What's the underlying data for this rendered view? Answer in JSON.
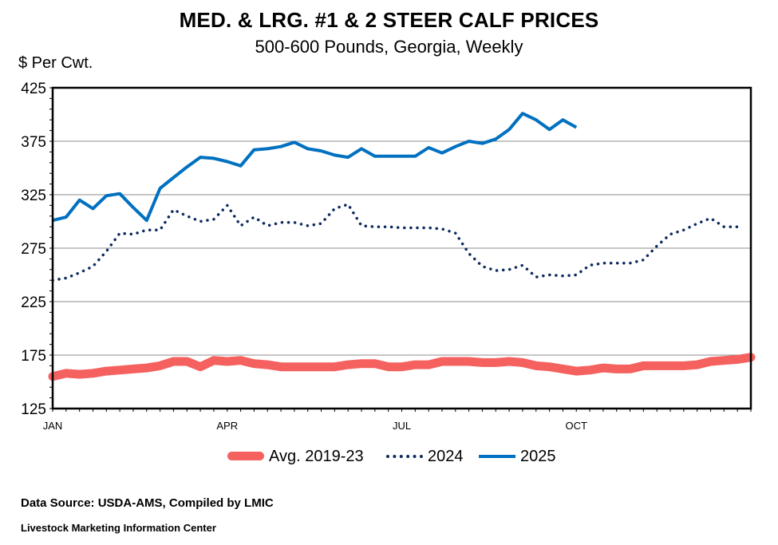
{
  "chart_data": {
    "type": "line",
    "title": "MED. & LRG. #1 & 2 STEER CALF PRICES",
    "subtitle": "500-600 Pounds, Georgia, Weekly",
    "ylabel": "$ Per Cwt.",
    "ylim": [
      125,
      425
    ],
    "yticks": [
      "425",
      "375",
      "325",
      "275",
      "225",
      "175",
      "125"
    ],
    "x_range": [
      1,
      53
    ],
    "xticks": [
      {
        "label": "JAN",
        "week": 1
      },
      {
        "label": "APR",
        "week": 14
      },
      {
        "label": "JUL",
        "week": 27
      },
      {
        "label": "OCT",
        "week": 40
      }
    ],
    "grid": true,
    "legend_position": "bottom",
    "series": [
      {
        "name": "Avg. 2019-23",
        "color": "#f4615f",
        "style": "thick",
        "x": [
          1,
          2,
          3,
          4,
          5,
          6,
          7,
          8,
          9,
          10,
          11,
          12,
          13,
          14,
          15,
          16,
          17,
          18,
          19,
          20,
          21,
          22,
          23,
          24,
          25,
          26,
          27,
          28,
          29,
          30,
          31,
          32,
          33,
          34,
          35,
          36,
          37,
          38,
          39,
          40,
          41,
          42,
          43,
          44,
          45,
          46,
          47,
          48,
          49,
          50,
          51,
          52,
          53
        ],
        "values": [
          155,
          158,
          157,
          158,
          160,
          161,
          162,
          163,
          165,
          169,
          169,
          164,
          170,
          169,
          170,
          167,
          166,
          164,
          164,
          164,
          164,
          164,
          166,
          167,
          167,
          164,
          164,
          166,
          166,
          169,
          169,
          169,
          168,
          168,
          169,
          168,
          165,
          164,
          162,
          160,
          161,
          163,
          162,
          162,
          165,
          165,
          165,
          165,
          166,
          169,
          170,
          171,
          173
        ]
      },
      {
        "name": "2024",
        "color": "#0d2a5e",
        "style": "dotted",
        "x": [
          1,
          2,
          3,
          4,
          5,
          6,
          7,
          8,
          9,
          10,
          11,
          12,
          13,
          14,
          15,
          16,
          17,
          18,
          19,
          20,
          21,
          22,
          23,
          24,
          25,
          26,
          27,
          28,
          29,
          30,
          31,
          32,
          33,
          34,
          35,
          36,
          37,
          38,
          39,
          40,
          41,
          42,
          43,
          44,
          45,
          46,
          47,
          48,
          49,
          50,
          51,
          52
        ],
        "values": [
          245,
          247,
          252,
          258,
          272,
          289,
          288,
          292,
          292,
          311,
          305,
          300,
          302,
          315,
          296,
          304,
          296,
          299,
          299,
          296,
          298,
          312,
          316,
          296,
          295,
          295,
          294,
          294,
          294,
          293,
          289,
          270,
          258,
          254,
          255,
          259,
          248,
          250,
          249,
          250,
          259,
          261,
          261,
          261,
          264,
          277,
          288,
          292,
          298,
          303,
          295,
          295
        ]
      },
      {
        "name": "2025",
        "color": "#0070c0",
        "style": "solid",
        "x": [
          1,
          2,
          3,
          4,
          5,
          6,
          7,
          8,
          9,
          10,
          11,
          12,
          13,
          14,
          15,
          16,
          17,
          18,
          19,
          20,
          21,
          22,
          23,
          24,
          25,
          26,
          27,
          28,
          29,
          30,
          31,
          32,
          33,
          34,
          35,
          36,
          37,
          38,
          39,
          40
        ],
        "values": [
          301,
          304,
          320,
          312,
          324,
          326,
          313,
          301,
          331,
          341,
          351,
          360,
          359,
          356,
          352,
          367,
          368,
          370,
          374,
          368,
          366,
          362,
          360,
          368,
          361,
          361,
          361,
          361,
          369,
          364,
          370,
          375,
          373,
          377,
          386,
          401,
          395,
          386,
          395,
          388
        ]
      }
    ]
  },
  "footer": {
    "source": "Data Source:  USDA-AMS, Compiled by LMIC",
    "center": "Livestock Marketing Information Center"
  }
}
